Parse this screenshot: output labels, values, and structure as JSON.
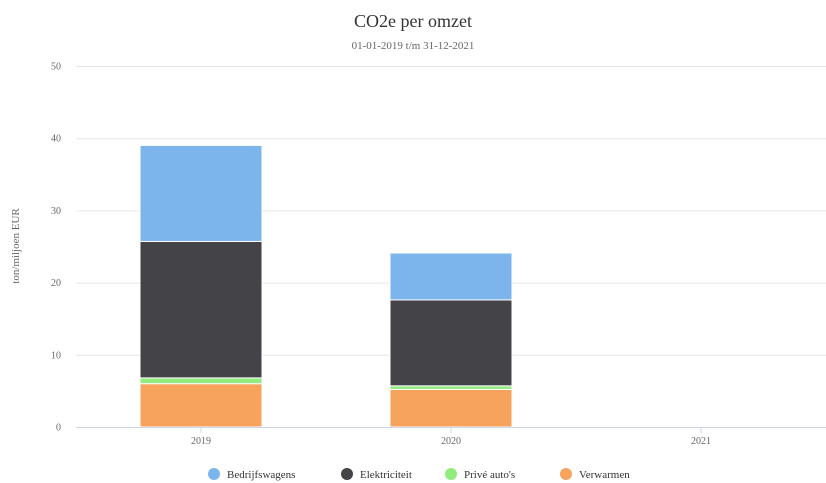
{
  "chart_data": {
    "type": "bar",
    "stacked": true,
    "title": "CO2e per omzet",
    "subtitle": "01-01-2019 t/m 31-12-2021",
    "xlabel": "",
    "ylabel": "ton/miljoen EUR",
    "ylim": [
      0,
      50
    ],
    "yticks": [
      0,
      10,
      20,
      30,
      40,
      50
    ],
    "grid": true,
    "legend_position": "bottom",
    "categories": [
      "2019",
      "2020",
      "2021"
    ],
    "series": [
      {
        "name": "Verwarmen",
        "color": "#f7a35c",
        "values": [
          6.0,
          5.2,
          0
        ]
      },
      {
        "name": "Privé auto's",
        "color": "#90ed7d",
        "values": [
          0.8,
          0.5,
          0
        ]
      },
      {
        "name": "Elektriciteit",
        "color": "#434348",
        "values": [
          18.9,
          11.9,
          0
        ]
      },
      {
        "name": "Bedrijfswagens",
        "color": "#7cb5ec",
        "values": [
          13.3,
          6.5,
          0
        ]
      }
    ],
    "legend_order": [
      "Bedrijfswagens",
      "Elektriciteit",
      "Privé auto's",
      "Verwarmen"
    ]
  }
}
